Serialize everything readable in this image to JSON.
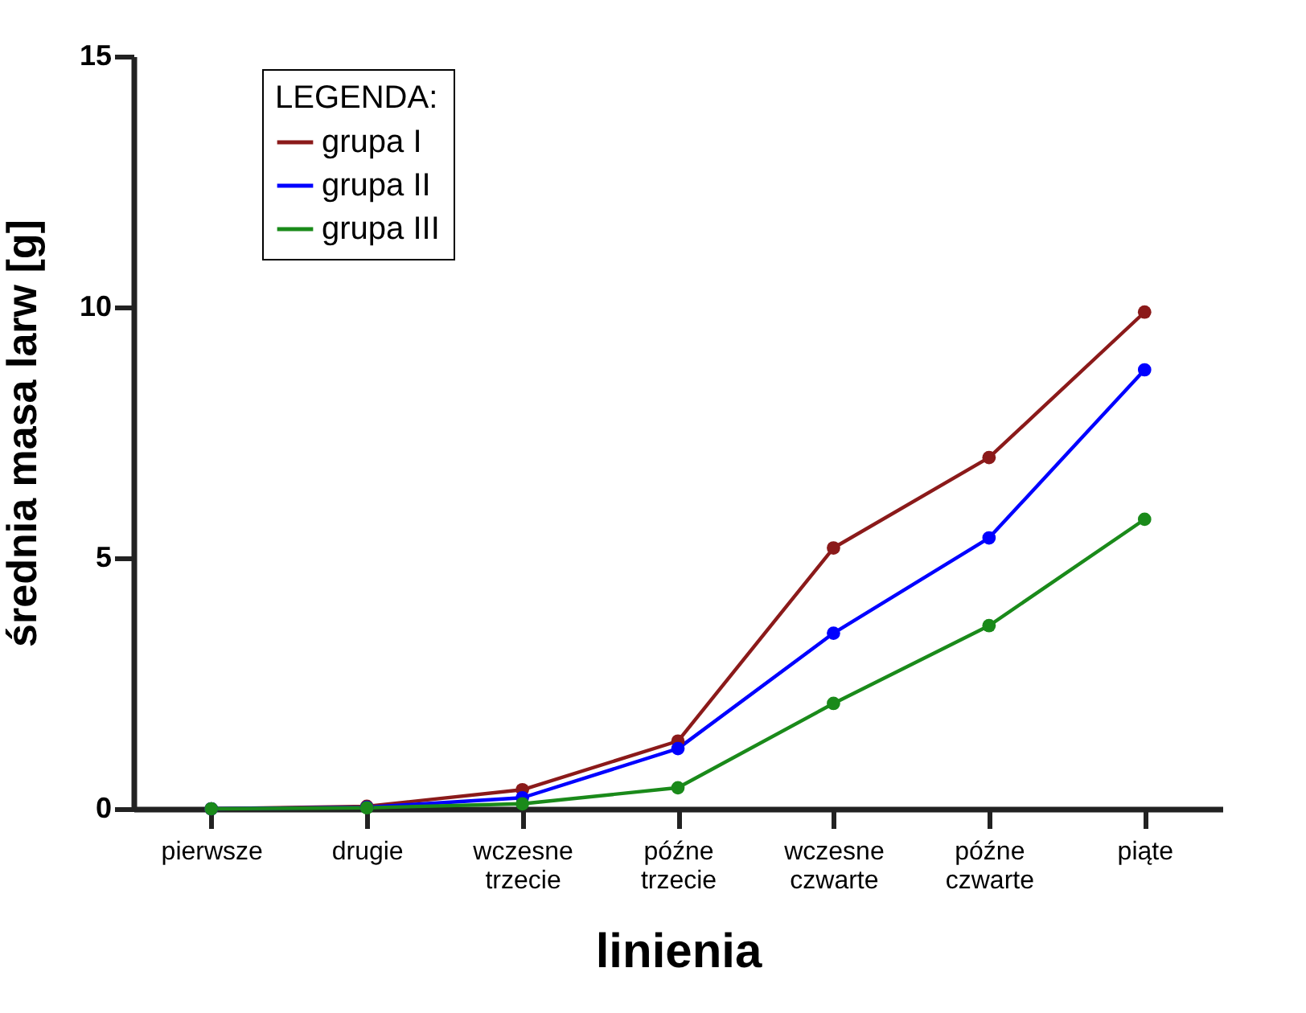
{
  "chart_data": {
    "type": "line",
    "xlabel": "linienia",
    "ylabel": "średnia masa larw [g]",
    "legend_title": "LEGENDA:",
    "categories": [
      "pierwsze",
      "drugie",
      "wczesne trzecie",
      "późne trzecie",
      "wczesne czwarte",
      "późne czwarte",
      "piąte"
    ],
    "series": [
      {
        "name": "grupa I",
        "color": "#8b1a1a",
        "values": [
          0,
          0.05,
          0.38,
          1.35,
          5.2,
          7.0,
          9.9
        ]
      },
      {
        "name": "grupa II",
        "color": "#0000ff",
        "values": [
          0,
          0.03,
          0.22,
          1.2,
          3.5,
          5.4,
          8.75
        ]
      },
      {
        "name": "grupa III",
        "color": "#1a8a1a",
        "values": [
          0,
          0.02,
          0.1,
          0.42,
          2.1,
          3.65,
          5.77
        ]
      }
    ],
    "ylim": [
      0,
      15
    ],
    "yticks": [
      0,
      5,
      10,
      15
    ],
    "grid": false,
    "legend": "top left",
    "marker": "circle",
    "line_style": "solid"
  }
}
